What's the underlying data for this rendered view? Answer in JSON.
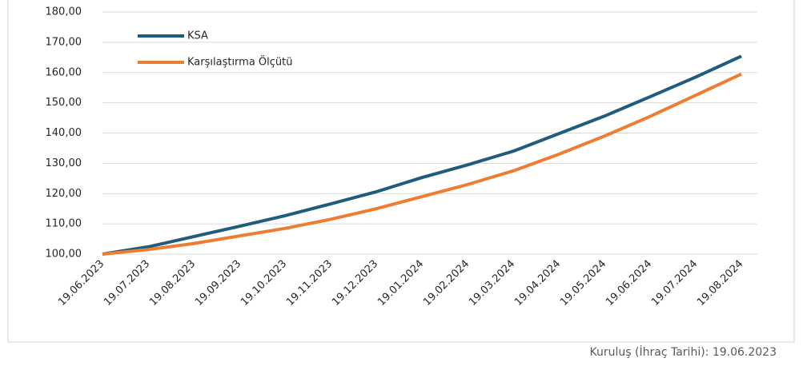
{
  "chart_data": {
    "type": "line",
    "categories": [
      "19.06.2023",
      "19.07.2023",
      "19.08.2023",
      "19.09.2023",
      "19.10.2023",
      "19.11.2023",
      "19.12.2023",
      "19.01.2024",
      "19.02.2024",
      "19.03.2024",
      "19.04.2024",
      "19.05.2024",
      "19.06.2024",
      "19.07.2024",
      "19.08.2024"
    ],
    "series": [
      {
        "name": "KSA",
        "color": "#1f5c7e",
        "values": [
          100,
          102.4,
          105.8,
          109.2,
          112.7,
          116.6,
          120.6,
          125.3,
          129.5,
          134,
          139.8,
          145.6,
          152,
          158.5,
          165.4
        ]
      },
      {
        "name": "Karşılaştırma Ölçütü",
        "color": "#ed7d31",
        "values": [
          100,
          101.5,
          103.5,
          106,
          108.5,
          111.5,
          115,
          119,
          123,
          127.5,
          133,
          139,
          145.5,
          152.5,
          159.5
        ]
      }
    ],
    "ylim": [
      100,
      180
    ],
    "yticks": [
      {
        "value": 100,
        "label": "100,00"
      },
      {
        "value": 110,
        "label": "110,00"
      },
      {
        "value": 120,
        "label": "120,00"
      },
      {
        "value": 130,
        "label": "130,00"
      },
      {
        "value": 140,
        "label": "140,00"
      },
      {
        "value": 150,
        "label": "150,00"
      },
      {
        "value": 160,
        "label": "160,00"
      },
      {
        "value": 170,
        "label": "170,00"
      },
      {
        "value": 180,
        "label": "180,00"
      }
    ],
    "grid": true,
    "legend": "upper-left",
    "footnote": "Kuruluş (İhraç Tarihi): 19.06.2023"
  }
}
